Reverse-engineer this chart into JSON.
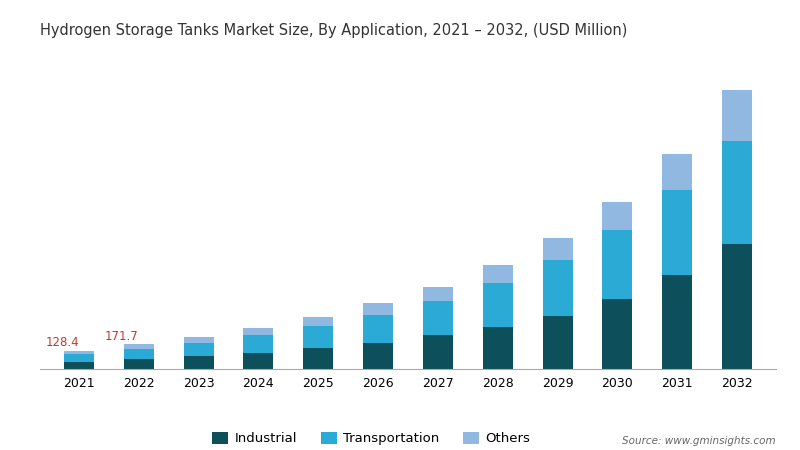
{
  "title": "Hydrogen Storage Tanks Market Size, By Application, 2021 – 2032, (USD Million)",
  "years": [
    2021,
    2022,
    2023,
    2024,
    2025,
    2026,
    2027,
    2028,
    2029,
    2030,
    2031,
    2032
  ],
  "industrial": [
    50,
    68,
    90,
    115,
    145,
    185,
    235,
    290,
    370,
    490,
    660,
    870
  ],
  "transportation": [
    55,
    72,
    95,
    120,
    155,
    195,
    240,
    310,
    390,
    480,
    590,
    720
  ],
  "others": [
    23.4,
    31.7,
    40,
    52,
    66,
    82,
    100,
    125,
    155,
    195,
    250,
    360
  ],
  "annotations": {
    "2021": "128.4",
    "2022": "171.7"
  },
  "colors": {
    "industrial": "#0e4f5c",
    "transportation": "#2aaad4",
    "others": "#90b8e0"
  },
  "legend_labels": [
    "Industrial",
    "Transportation",
    "Others"
  ],
  "source_text": "Source: www.gminsights.com",
  "title_color": "#333333",
  "annotation_color": "#c0392b",
  "background_color": "#ffffff"
}
